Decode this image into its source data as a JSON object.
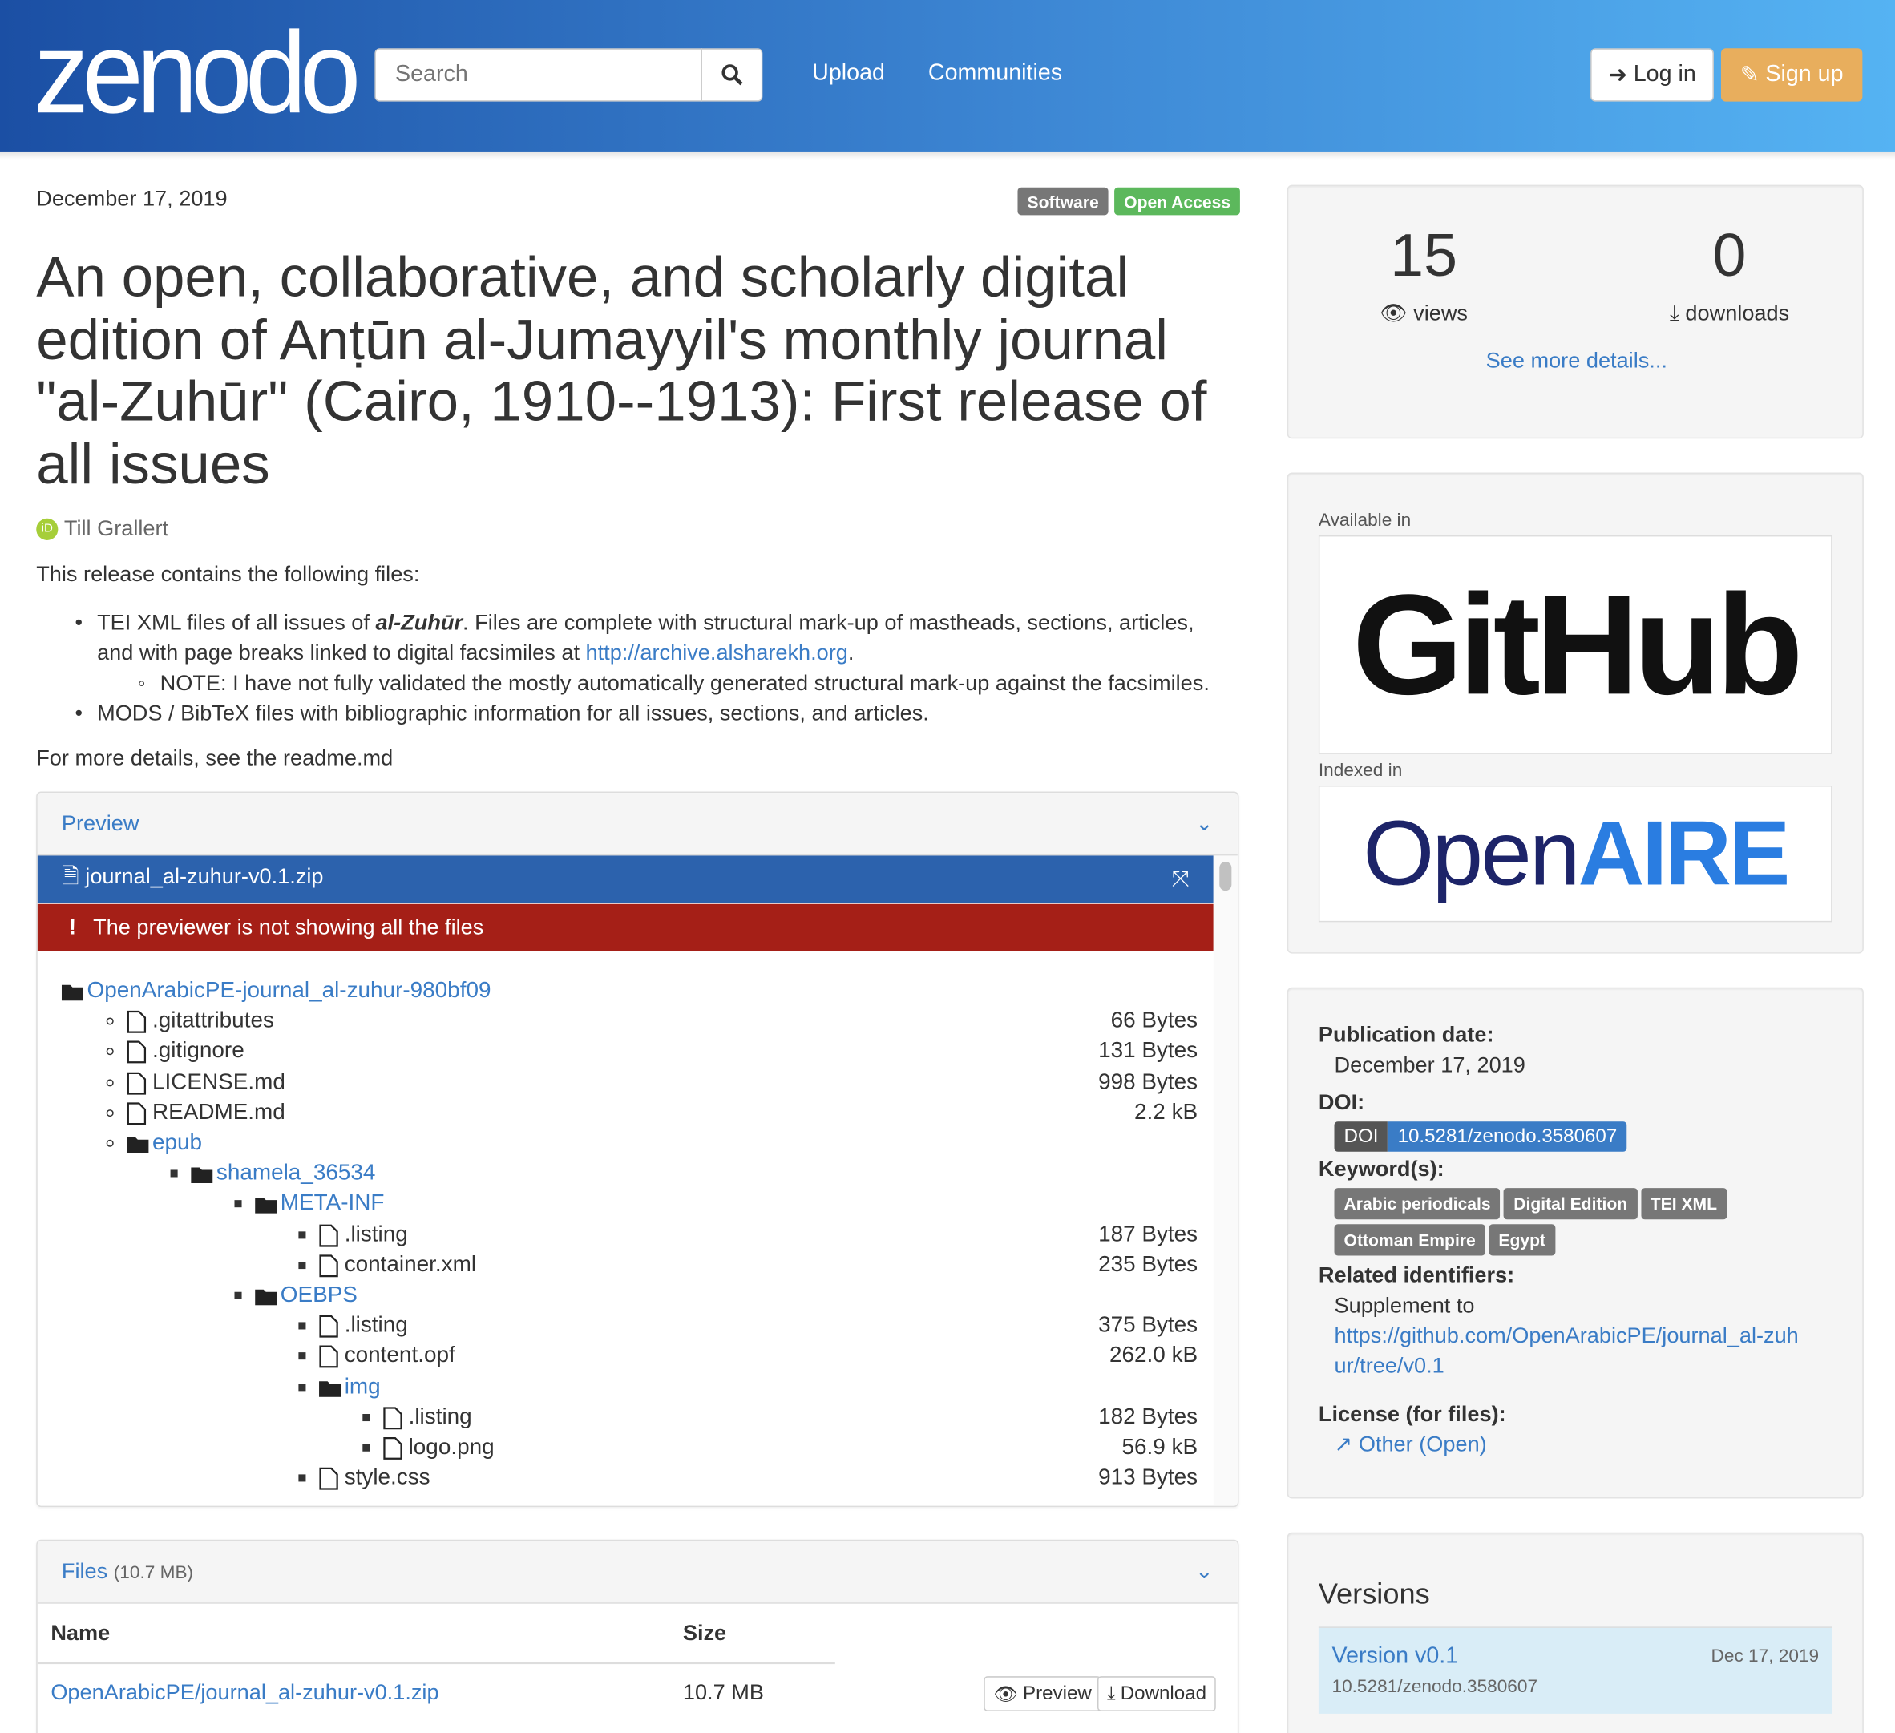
{
  "header": {
    "logo": "zenodo",
    "search_placeholder": "Search",
    "nav": [
      "Upload",
      "Communities"
    ],
    "login": "Log in",
    "signup": "Sign up"
  },
  "record": {
    "date": "December 17, 2019",
    "badges": [
      {
        "label": "Software",
        "color": "#777777"
      },
      {
        "label": "Open Access",
        "color": "#5cb85c"
      }
    ],
    "title": "An open, collaborative, and scholarly digital edition of Anṭūn al-Jumayyil's monthly journal \"al-Zuhūr\" (Cairo, 1910--1913): First release of all issues",
    "author": "Till Grallert",
    "intro": "This release contains the following files:",
    "bullet1_pre": "TEI XML files of all issues of ",
    "bullet1_em": "al-Zuhūr",
    "bullet1_post": ". Files are complete with structural mark-up of mastheads, sections, articles, and with page breaks linked to digital facsimiles at ",
    "bullet1_link": "http://archive.alsharekh.org",
    "bullet1_end": ".",
    "note": "NOTE: I have not fully validated the mostly automatically generated structural mark-up against the facsimiles.",
    "bullet2": "MODS / BibTeX files with bibliographic information for all issues, sections, and articles.",
    "more": "For more details, see the readme.md"
  },
  "preview": {
    "title": "Preview",
    "file": "journal_al-zuhur-v0.1.zip",
    "warning": "The previewer is not showing all the files",
    "tree": [
      {
        "d": 0,
        "t": "folder",
        "n": "OpenArabicPE-journal_al-zuhur-980bf09"
      },
      {
        "d": 1,
        "t": "file",
        "n": ".gitattributes",
        "s": "66 Bytes"
      },
      {
        "d": 1,
        "t": "file",
        "n": ".gitignore",
        "s": "131 Bytes"
      },
      {
        "d": 1,
        "t": "file",
        "n": "LICENSE.md",
        "s": "998 Bytes"
      },
      {
        "d": 1,
        "t": "file",
        "n": "README.md",
        "s": "2.2 kB"
      },
      {
        "d": 1,
        "t": "folder",
        "n": "epub"
      },
      {
        "d": 2,
        "t": "folder",
        "n": "shamela_36534"
      },
      {
        "d": 3,
        "t": "folder",
        "n": "META-INF"
      },
      {
        "d": 4,
        "t": "file",
        "n": ".listing",
        "s": "187 Bytes"
      },
      {
        "d": 4,
        "t": "file",
        "n": "container.xml",
        "s": "235 Bytes"
      },
      {
        "d": 3,
        "t": "folder",
        "n": "OEBPS"
      },
      {
        "d": 4,
        "t": "file",
        "n": ".listing",
        "s": "375 Bytes"
      },
      {
        "d": 4,
        "t": "file",
        "n": "content.opf",
        "s": "262.0 kB"
      },
      {
        "d": 4,
        "t": "folder",
        "n": "img"
      },
      {
        "d": 5,
        "t": "file",
        "n": ".listing",
        "s": "182 Bytes"
      },
      {
        "d": 5,
        "t": "file",
        "n": "logo.png",
        "s": "56.9 kB"
      },
      {
        "d": 4,
        "t": "file",
        "n": "style.css",
        "s": "913 Bytes"
      }
    ]
  },
  "files": {
    "title": "Files",
    "size": "(10.7 MB)",
    "col_name": "Name",
    "col_size": "Size",
    "rows": [
      {
        "name": "OpenArabicPE/journal_al-zuhur-v0.1.zip",
        "size": "10.7 MB",
        "preview": "Preview",
        "download": "Download"
      }
    ]
  },
  "stats": {
    "views": "15",
    "views_label": "views",
    "downloads": "0",
    "downloads_label": "downloads",
    "more": "See more details..."
  },
  "available": {
    "label": "Available in",
    "github": "GitHub",
    "indexed": "Indexed in",
    "openaire_a": "Open",
    "openaire_b": "AIRE"
  },
  "meta": {
    "pub_label": "Publication date:",
    "pub": "December 17, 2019",
    "doi_label": "DOI:",
    "doi_tag": "DOI",
    "doi": "10.5281/zenodo.3580607",
    "kw_label": "Keyword(s):",
    "keywords": [
      "Arabic periodicals",
      "Digital Edition",
      "TEI XML",
      "Ottoman Empire",
      "Egypt"
    ],
    "rel_label": "Related identifiers:",
    "rel_type": "Supplement to",
    "rel_link": "https://github.com/OpenArabicPE/journal_al-zuhur/tree/v0.1",
    "lic_label": "License (for files):",
    "lic": "Other (Open)"
  },
  "versions": {
    "title": "Versions",
    "items": [
      {
        "label": "Version v0.1",
        "date": "Dec 17, 2019",
        "doi": "10.5281/zenodo.3580607"
      }
    ]
  }
}
